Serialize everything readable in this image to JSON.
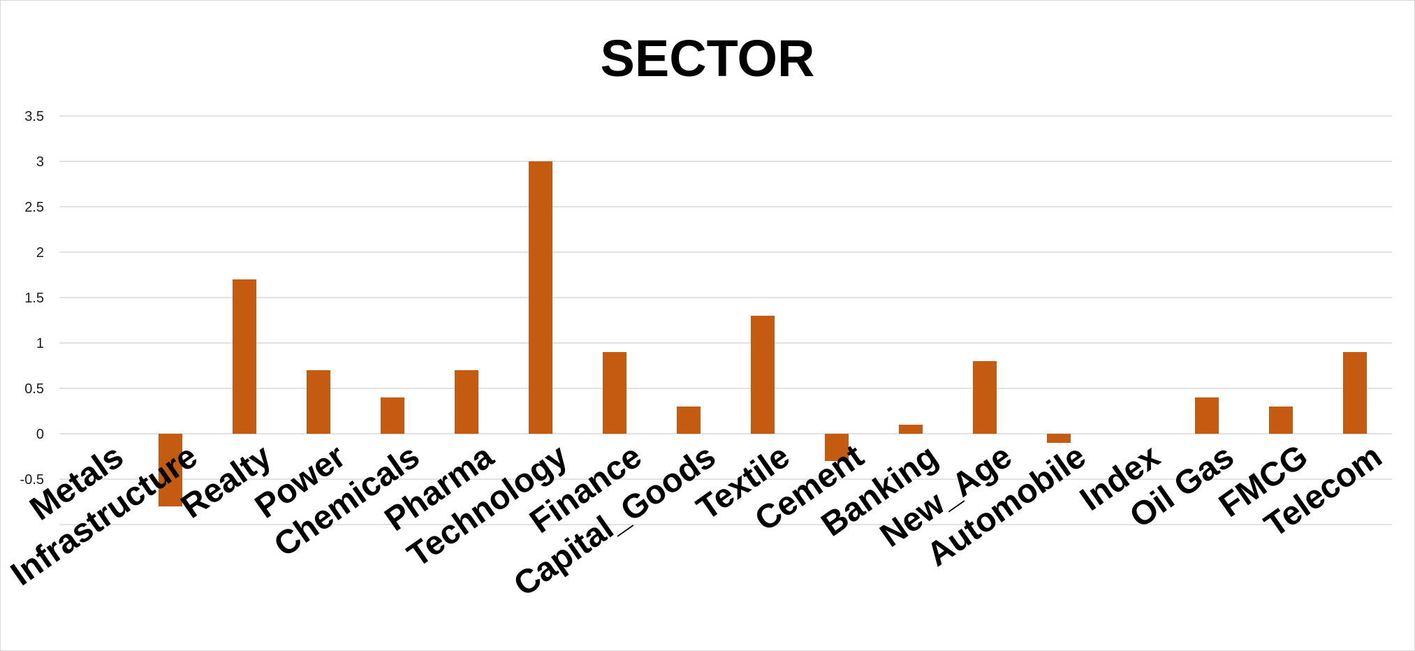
{
  "chart_data": {
    "type": "bar",
    "title": "SECTOR",
    "xlabel": "",
    "ylabel": "",
    "categories": [
      "Metals",
      "Infrastructure",
      "Realty",
      "Power",
      "Chemicals",
      "Pharma",
      "Technology",
      "Finance",
      "Capital_Goods",
      "Textile",
      "Cement",
      "Banking",
      "New_Age",
      "Automobile",
      "Index",
      "Oil Gas",
      "FMCG",
      "Telecom"
    ],
    "values": [
      0,
      -0.8,
      1.7,
      0.7,
      0.4,
      0.7,
      3.0,
      0.9,
      0.3,
      1.3,
      -0.3,
      0.1,
      0.8,
      -0.1,
      0,
      0.4,
      0.3,
      0.9
    ],
    "ylim": [
      -1,
      3.5
    ],
    "yticks": [
      "3.5",
      "3",
      "2.5",
      "2",
      "1.5",
      "1",
      "0.5",
      "0",
      "-0.5"
    ],
    "grid": true,
    "legend": "none",
    "bar_color": "#C55A11"
  }
}
